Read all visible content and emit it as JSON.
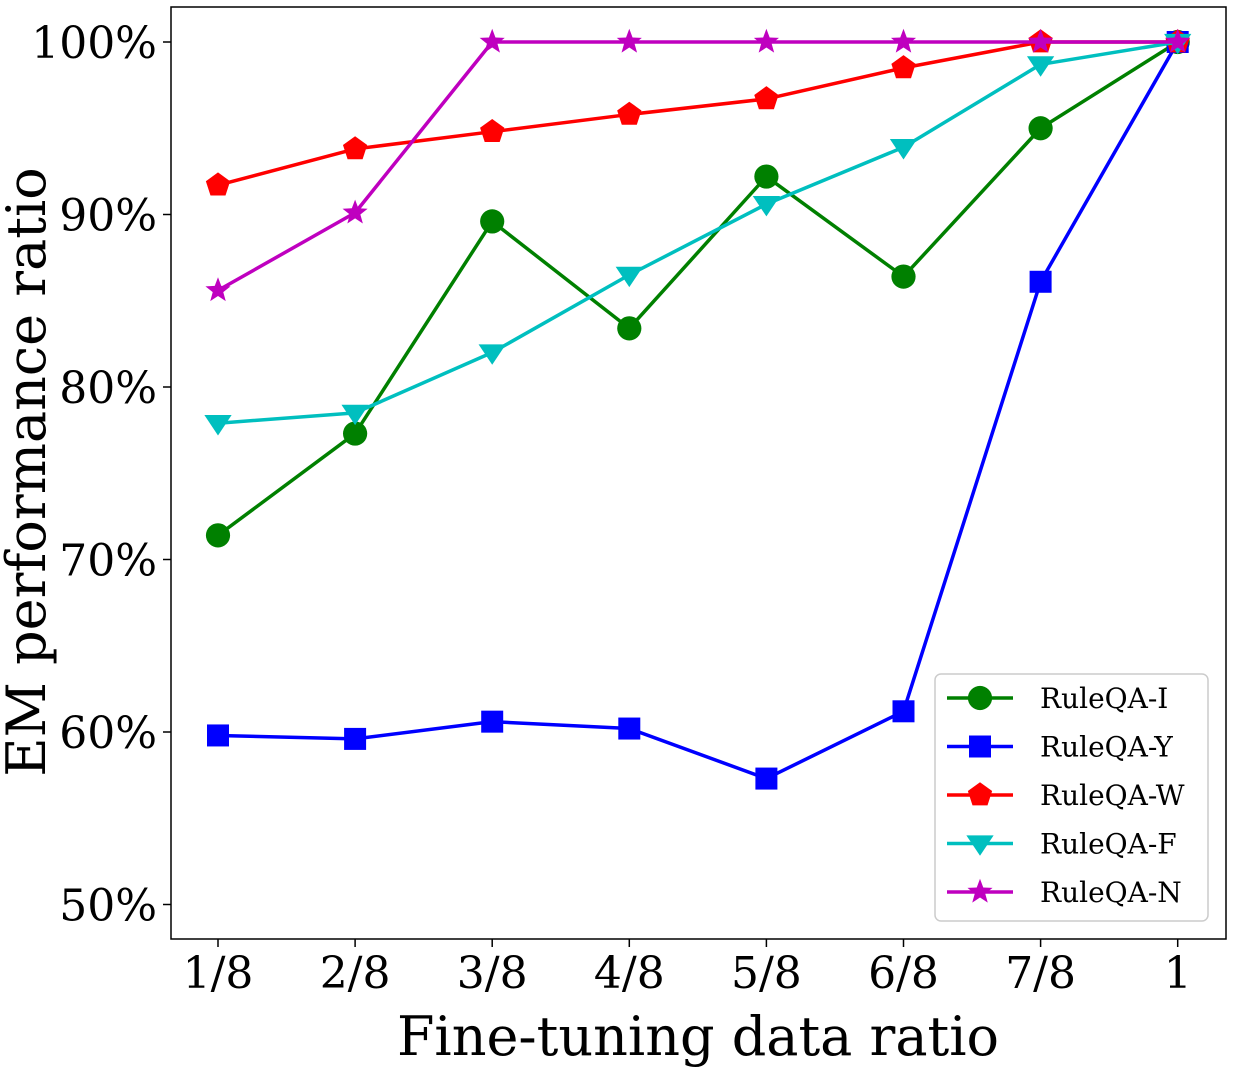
{
  "chart_data": {
    "type": "line",
    "categories": [
      "1/8",
      "2/8",
      "3/8",
      "4/8",
      "5/8",
      "6/8",
      "7/8",
      "1"
    ],
    "xlabel": "Fine-tuning data ratio",
    "ylabel": "EM performance ratio",
    "ylim": [
      48,
      101
    ],
    "yticks": [
      50,
      60,
      70,
      80,
      90,
      100
    ],
    "ytick_labels": [
      "50%",
      "60%",
      "70%",
      "80%",
      "90%",
      "100%"
    ],
    "grid": false,
    "legend_position": "lower-right",
    "series": [
      {
        "name": "RuleQA-I",
        "color": "#008000",
        "marker": "circle",
        "values": [
          71.4,
          77.3,
          89.6,
          83.4,
          92.2,
          86.4,
          95.0,
          100
        ]
      },
      {
        "name": "RuleQA-Y",
        "color": "#0000ff",
        "marker": "square",
        "values": [
          59.8,
          59.6,
          60.6,
          60.2,
          57.3,
          61.2,
          86.1,
          100
        ]
      },
      {
        "name": "RuleQA-W",
        "color": "#ff0000",
        "marker": "pentagon",
        "values": [
          91.7,
          93.8,
          94.8,
          95.8,
          96.7,
          98.5,
          100,
          100
        ]
      },
      {
        "name": "RuleQA-F",
        "color": "#00bfbf",
        "marker": "triangle-down",
        "values": [
          77.9,
          78.5,
          82.0,
          86.5,
          90.6,
          93.9,
          98.7,
          100
        ]
      },
      {
        "name": "RuleQA-N",
        "color": "#bf00bf",
        "marker": "star",
        "values": [
          85.6,
          90.1,
          100,
          100,
          100,
          100,
          100,
          100
        ]
      }
    ]
  }
}
